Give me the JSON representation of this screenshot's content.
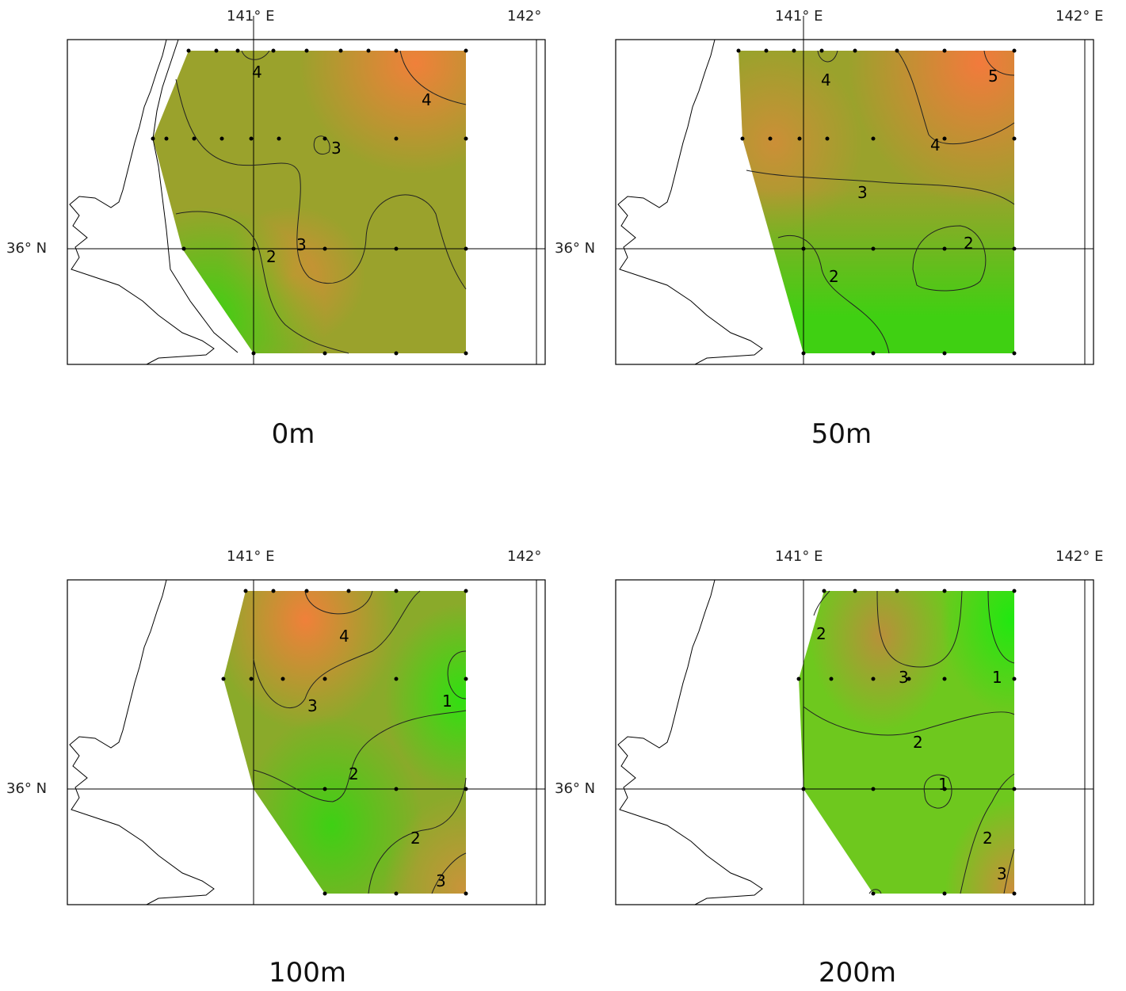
{
  "axis": {
    "lon_141": "141° E",
    "lon_142_short": "142°",
    "lon_142": "142° E",
    "lat_36": "36° N"
  },
  "panels": [
    {
      "id": "p0",
      "depth_label": "0m",
      "top_right_lon": "142°",
      "colors": {
        "low": "#3fd012",
        "mid": "#9aa22c",
        "high": "#f0803a"
      },
      "contour_labels": [
        "4",
        "4",
        "3",
        "3",
        "2"
      ]
    },
    {
      "id": "p50",
      "depth_label": "50m",
      "top_right_lon": "142° E",
      "colors": {
        "low": "#3fd012",
        "mid": "#9aa22c",
        "high": "#f0803a"
      },
      "contour_labels": [
        "4",
        "5",
        "4",
        "3",
        "2",
        "2"
      ]
    },
    {
      "id": "p100",
      "depth_label": "100m",
      "top_right_lon": "142°",
      "colors": {
        "low": "#30e010",
        "mid": "#9aa22c",
        "high": "#f0803a"
      },
      "contour_labels": [
        "4",
        "3",
        "1",
        "2",
        "2",
        "3"
      ]
    },
    {
      "id": "p200",
      "depth_label": "200m",
      "top_right_lon": "142° E",
      "colors": {
        "low": "#20e810",
        "mid": "#9aa22c",
        "high": "#d88a3a"
      },
      "contour_labels": [
        "2",
        "3",
        "1",
        "2",
        "1",
        "2",
        "3"
      ]
    }
  ]
}
